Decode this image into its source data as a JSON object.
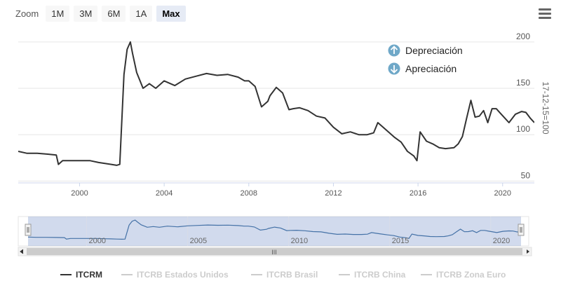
{
  "toolbar": {
    "zoom_label": "Zoom",
    "buttons": [
      "1M",
      "3M",
      "6M",
      "1A",
      "Max"
    ],
    "active": "Max"
  },
  "menu_icon": "hamburger-menu-icon",
  "chart_data": {
    "type": "line",
    "annotations": [
      {
        "text": "Depreciación",
        "icon": "arrow-up-circle-icon",
        "color": "#6fa8c8"
      },
      {
        "text": "Apreciación",
        "icon": "arrow-down-circle-icon",
        "color": "#6fa8c8"
      }
    ],
    "ylabel": "17-12-15=100",
    "yticks": [
      50,
      100,
      150,
      200
    ],
    "xticks": [
      "2000",
      "2004",
      "2008",
      "2012",
      "2016",
      "2020"
    ],
    "xlim": [
      1997.1,
      2021.5
    ],
    "ylim": [
      45,
      215
    ],
    "navigator_ticks": [
      "2000",
      "2005",
      "2010",
      "2015",
      "2020"
    ],
    "navigator_scroll_label": "III",
    "series": [
      {
        "name": "ITCRM",
        "color": "#333333",
        "visible": true,
        "x": [
          1997.1,
          1997.5,
          1998.0,
          1998.5,
          1998.9,
          1999.0,
          1999.2,
          1999.6,
          2000.0,
          2000.5,
          2000.9,
          2001.2,
          2001.5,
          2001.75,
          2001.9,
          2002.1,
          2002.25,
          2002.4,
          2002.5,
          2002.7,
          2003.0,
          2003.3,
          2003.6,
          2004.0,
          2004.5,
          2005.0,
          2005.5,
          2006.0,
          2006.5,
          2007.0,
          2007.5,
          2007.8,
          2008.0,
          2008.3,
          2008.6,
          2008.9,
          2009.0,
          2009.3,
          2009.6,
          2009.9,
          2010.1,
          2010.4,
          2010.8,
          2011.2,
          2011.6,
          2012.0,
          2012.4,
          2012.8,
          2013.2,
          2013.6,
          2013.9,
          2014.1,
          2014.5,
          2014.9,
          2015.2,
          2015.5,
          2015.8,
          2015.95,
          2016.1,
          2016.4,
          2016.7,
          2017.0,
          2017.3,
          2017.7,
          2017.9,
          2018.1,
          2018.3,
          2018.5,
          2018.7,
          2018.9,
          2019.1,
          2019.3,
          2019.5,
          2019.7,
          2019.9,
          2020.1,
          2020.3,
          2020.6,
          2020.9,
          2021.1,
          2021.3,
          2021.5
        ],
        "y": [
          82,
          80,
          80,
          79,
          78,
          68,
          72,
          72,
          72,
          72,
          70,
          69,
          68,
          67,
          68,
          165,
          192,
          200,
          188,
          167,
          150,
          155,
          150,
          158,
          153,
          160,
          163,
          166,
          164,
          165,
          162,
          158,
          158,
          152,
          130,
          136,
          142,
          151,
          145,
          127,
          128,
          129,
          126,
          120,
          118,
          108,
          101,
          103,
          100,
          100,
          102,
          113,
          105,
          97,
          92,
          82,
          77,
          72,
          103,
          93,
          90,
          86,
          85,
          86,
          90,
          98,
          118,
          137,
          119,
          120,
          126,
          113,
          128,
          128,
          123,
          118,
          113,
          122,
          125,
          124,
          118,
          113
        ]
      },
      {
        "name": "ITCRB Estados Unidos",
        "color": "#cccccc",
        "visible": false
      },
      {
        "name": "ITCRB Brasil",
        "color": "#cccccc",
        "visible": false
      },
      {
        "name": "ITCRB China",
        "color": "#cccccc",
        "visible": false
      },
      {
        "name": "ITCRB Zona Euro",
        "color": "#cccccc",
        "visible": false
      }
    ]
  }
}
